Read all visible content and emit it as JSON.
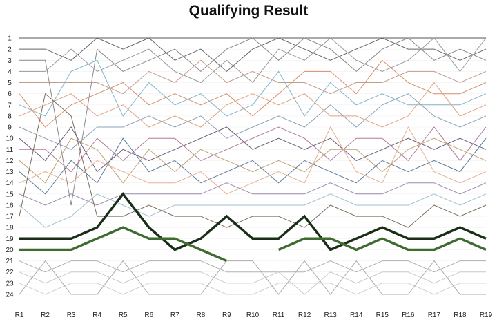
{
  "chart_data": {
    "type": "line",
    "title": "Qualifying Result",
    "xlabel": "",
    "ylabel": "",
    "categories": [
      "R1",
      "R2",
      "R3",
      "R4",
      "R5",
      "R6",
      "R7",
      "R8",
      "R9",
      "R10",
      "R11",
      "R12",
      "R13",
      "R14",
      "R15",
      "R16",
      "R17",
      "R18",
      "R19"
    ],
    "y_ticks": [
      1,
      2,
      3,
      4,
      5,
      6,
      7,
      8,
      9,
      10,
      11,
      12,
      13,
      14,
      15,
      16,
      17,
      18,
      19,
      20,
      21,
      22,
      23,
      24
    ],
    "ylim": [
      1,
      24
    ],
    "y_inverted": true,
    "grid": false,
    "legend": "none",
    "highlight_series": [
      {
        "color": "#1a2e17",
        "values": [
          19,
          19,
          19,
          18,
          15,
          18,
          20,
          19,
          17,
          19,
          19,
          17,
          20,
          19,
          18,
          19,
          19,
          18,
          19
        ]
      },
      {
        "color": "#3f6b31",
        "values": [
          20,
          20,
          20,
          19,
          18,
          19,
          19,
          20,
          21,
          null,
          20,
          19,
          19,
          20,
          19,
          20,
          20,
          19,
          20
        ]
      }
    ],
    "background_series": [
      {
        "color": "#555555",
        "values": [
          1,
          1,
          1,
          1,
          1,
          1,
          1,
          1,
          1,
          1,
          1,
          1,
          1,
          1,
          1,
          1,
          1,
          1,
          1
        ]
      },
      {
        "color": "#666666",
        "values": [
          2,
          2,
          3,
          1,
          2,
          1,
          3,
          2,
          4,
          2,
          1,
          2,
          3,
          2,
          1,
          2,
          2,
          3,
          2
        ]
      },
      {
        "color": "#888888",
        "values": [
          3,
          3,
          16,
          2,
          4,
          3,
          2,
          4,
          2,
          1,
          3,
          1,
          2,
          4,
          2,
          1,
          3,
          2,
          3
        ]
      },
      {
        "color": "#999999",
        "values": [
          4,
          4,
          2,
          4,
          3,
          2,
          4,
          5,
          3,
          5,
          2,
          3,
          1,
          3,
          4,
          3,
          1,
          4,
          1
        ]
      },
      {
        "color": "#c49a8a",
        "values": [
          5,
          5,
          5,
          5,
          6,
          4,
          5,
          3,
          5,
          4,
          5,
          5,
          6,
          5,
          5,
          4,
          4,
          5,
          4
        ]
      },
      {
        "color": "#d88c6a",
        "values": [
          6,
          9,
          7,
          6,
          5,
          7,
          6,
          7,
          6,
          8,
          6,
          4,
          4,
          6,
          3,
          5,
          6,
          6,
          5
        ]
      },
      {
        "color": "#7fb3c8",
        "values": [
          7,
          8,
          4,
          3,
          8,
          5,
          7,
          6,
          8,
          7,
          4,
          8,
          5,
          7,
          6,
          7,
          7,
          7,
          6
        ]
      },
      {
        "color": "#e0a080",
        "values": [
          8,
          7,
          6,
          8,
          7,
          9,
          8,
          9,
          7,
          6,
          7,
          6,
          8,
          8,
          9,
          8,
          5,
          8,
          7
        ]
      },
      {
        "color": "#8aa0b8",
        "values": [
          9,
          10,
          11,
          9,
          9,
          8,
          9,
          8,
          10,
          9,
          8,
          9,
          7,
          9,
          7,
          6,
          8,
          9,
          8
        ]
      },
      {
        "color": "#6a5a7a",
        "values": [
          10,
          12,
          9,
          13,
          11,
          12,
          11,
          10,
          9,
          11,
          10,
          11,
          10,
          12,
          11,
          10,
          11,
          10,
          11
        ]
      },
      {
        "color": "#b07a9a",
        "values": [
          11,
          11,
          13,
          10,
          12,
          10,
          10,
          12,
          11,
          10,
          9,
          10,
          12,
          10,
          10,
          12,
          9,
          12,
          9
        ]
      },
      {
        "color": "#c0a070",
        "values": [
          12,
          14,
          10,
          11,
          14,
          11,
          13,
          11,
          12,
          13,
          12,
          13,
          11,
          11,
          13,
          11,
          10,
          11,
          12
        ]
      },
      {
        "color": "#5a7a9a",
        "values": [
          13,
          15,
          12,
          14,
          10,
          13,
          12,
          14,
          13,
          12,
          14,
          12,
          13,
          14,
          12,
          13,
          12,
          13,
          10
        ]
      },
      {
        "color": "#e8b090",
        "values": [
          14,
          13,
          14,
          12,
          13,
          14,
          14,
          13,
          15,
          14,
          13,
          14,
          9,
          13,
          14,
          9,
          13,
          14,
          13
        ]
      },
      {
        "color": "#9a8aa8",
        "values": [
          15,
          16,
          15,
          16,
          15,
          15,
          15,
          15,
          14,
          15,
          15,
          15,
          14,
          15,
          15,
          14,
          14,
          15,
          14
        ]
      },
      {
        "color": "#a0c0d0",
        "values": [
          16,
          18,
          17,
          15,
          16,
          17,
          16,
          16,
          16,
          16,
          16,
          16,
          15,
          16,
          16,
          16,
          15,
          16,
          15
        ]
      },
      {
        "color": "#7a6a5a",
        "values": [
          17,
          6,
          8,
          17,
          17,
          16,
          17,
          17,
          18,
          17,
          17,
          18,
          16,
          17,
          17,
          18,
          16,
          17,
          16
        ]
      },
      {
        "color": "#b0b0b0",
        "values": [
          21,
          22,
          21,
          21,
          22,
          21,
          21,
          21,
          22,
          22,
          22,
          22,
          21,
          22,
          21,
          21,
          22,
          21,
          21
        ]
      },
      {
        "color": "#c8c8c8",
        "values": [
          22,
          23,
          22,
          22,
          23,
          22,
          22,
          22,
          23,
          23,
          22,
          24,
          22,
          23,
          22,
          22,
          23,
          22,
          22
        ]
      },
      {
        "color": "#d0d0d0",
        "values": [
          23,
          24,
          23,
          23,
          24,
          23,
          23,
          23,
          24,
          24,
          23,
          23,
          23,
          24,
          23,
          23,
          24,
          23,
          23
        ]
      },
      {
        "color": "#aaaaaa",
        "values": [
          24,
          21,
          24,
          24,
          21,
          24,
          24,
          24,
          21,
          21,
          24,
          21,
          24,
          21,
          24,
          24,
          21,
          24,
          24
        ]
      }
    ]
  }
}
